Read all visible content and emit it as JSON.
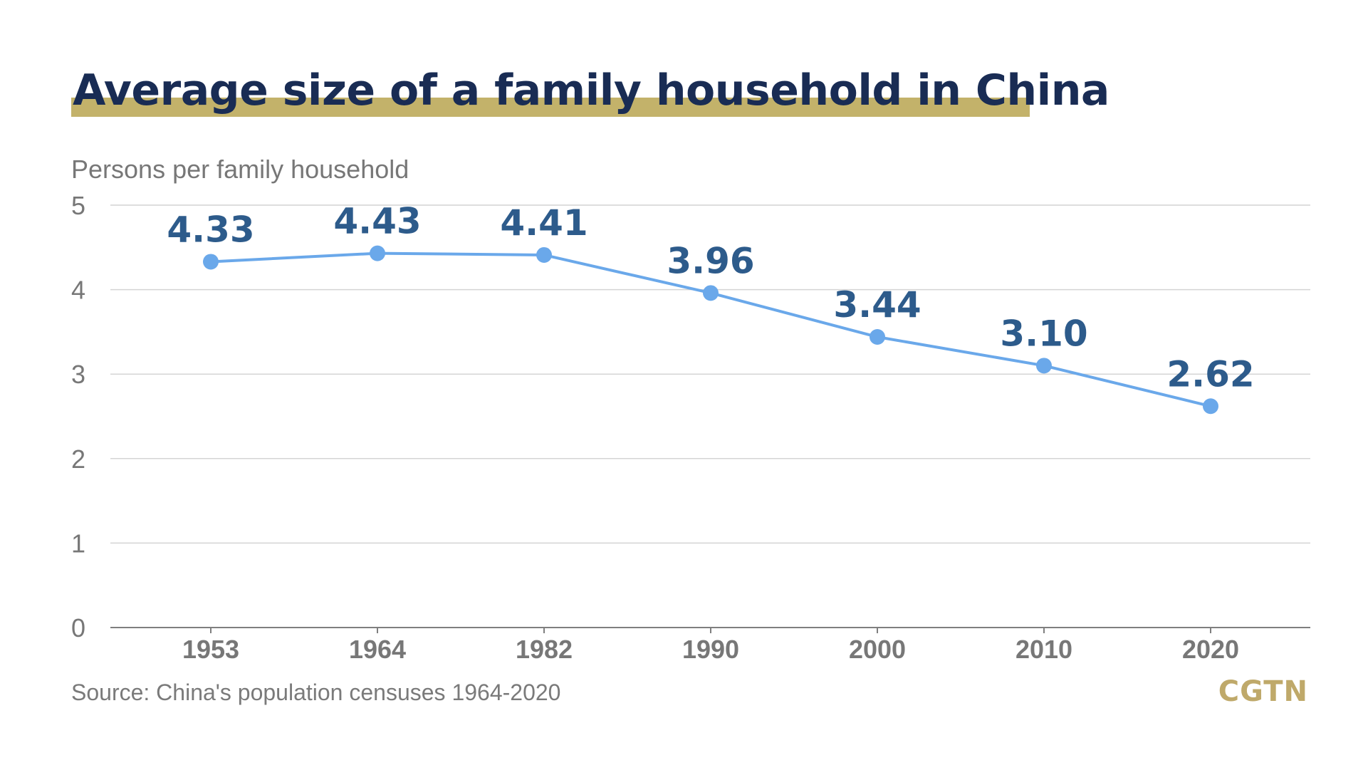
{
  "chart_data": {
    "type": "line",
    "title": "Average size of a family household in China",
    "ylabel": "Persons per family household",
    "xlabel": "",
    "categories": [
      "1953",
      "1964",
      "1982",
      "1990",
      "2000",
      "2010",
      "2020"
    ],
    "series": [
      {
        "values": [
          4.33,
          4.43,
          4.41,
          3.96,
          3.44,
          3.1,
          2.62
        ]
      }
    ],
    "data_labels": [
      "4.33",
      "4.43",
      "4.41",
      "3.96",
      "3.44",
      "3.10",
      "2.62"
    ],
    "ylim": [
      0,
      5
    ],
    "yticks": [
      "0",
      "1",
      "2",
      "3",
      "4",
      "5"
    ],
    "grid": true,
    "legend": "none",
    "colors": {
      "line": "#6aa8ea",
      "title": "#192c54",
      "underline": "#c3b26a",
      "data_label": "#2d5b8b",
      "grid": "#d4d4d4",
      "axis": "#7f7f7f"
    }
  },
  "source": "Source: China's population censuses 1964-2020",
  "logo": "CGTN"
}
